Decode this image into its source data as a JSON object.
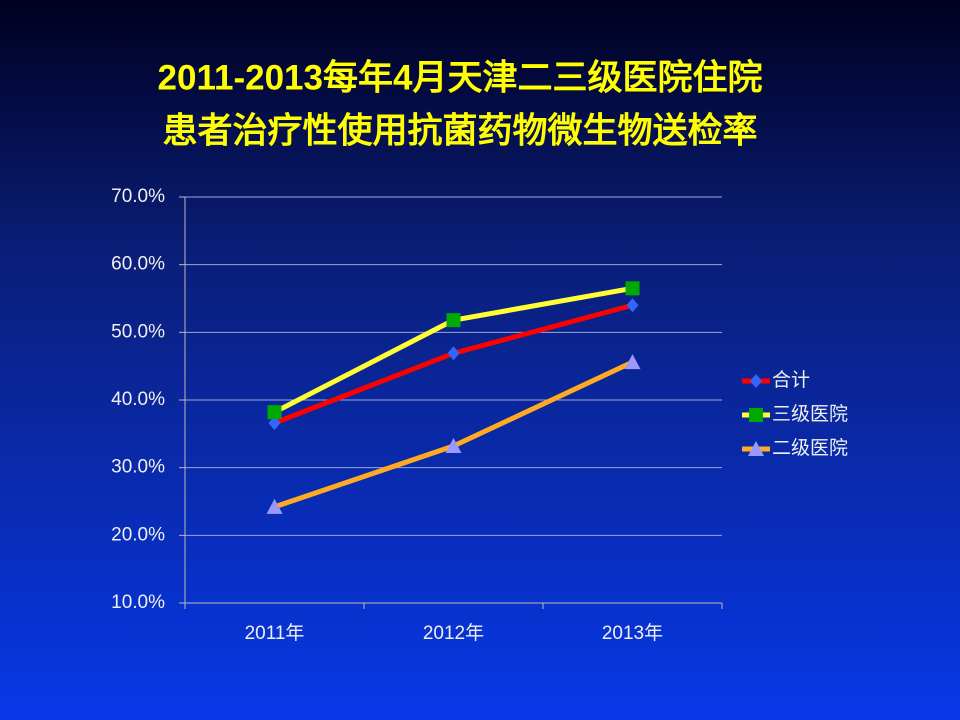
{
  "chart_data": {
    "type": "line",
    "title_lines": [
      "2011-2013每年4月天津二三级医院住院",
      "患者治疗性使用抗菌药物微生物送检率"
    ],
    "categories": [
      "2011年",
      "2012年",
      "2013年"
    ],
    "series": [
      {
        "name": "合计",
        "color": "#ff0000",
        "marker": "diamond",
        "marker_color": "#3366ff",
        "values": [
          36.6,
          46.9,
          54.0
        ]
      },
      {
        "name": "三级医院",
        "color": "#ffff33",
        "marker": "square",
        "marker_color": "#00aa00",
        "values": [
          38.2,
          51.8,
          56.5
        ]
      },
      {
        "name": "二级医院",
        "color": "#ffaa22",
        "marker": "triangle",
        "marker_color": "#9999ff",
        "values": [
          24.2,
          33.2,
          45.6
        ]
      }
    ],
    "ylim": [
      10,
      70
    ],
    "yticks": [
      {
        "value": 10,
        "label": "10.0%"
      },
      {
        "value": 20,
        "label": "20.0%"
      },
      {
        "value": 30,
        "label": "30.0%"
      },
      {
        "value": 40,
        "label": "40.0%"
      },
      {
        "value": 50,
        "label": "50.0%"
      },
      {
        "value": 60,
        "label": "60.0%"
      },
      {
        "value": 70,
        "label": "70.0%"
      }
    ],
    "grid": true,
    "legend": "right"
  }
}
